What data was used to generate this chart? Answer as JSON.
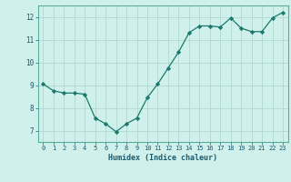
{
  "x": [
    0,
    1,
    2,
    3,
    4,
    5,
    6,
    7,
    8,
    9,
    10,
    11,
    12,
    13,
    14,
    15,
    16,
    17,
    18,
    19,
    20,
    21,
    22,
    23
  ],
  "y": [
    9.05,
    8.75,
    8.65,
    8.65,
    8.6,
    7.55,
    7.3,
    6.95,
    7.3,
    7.55,
    8.45,
    9.05,
    9.75,
    10.45,
    11.3,
    11.6,
    11.6,
    11.55,
    11.95,
    11.5,
    11.35,
    11.35,
    11.95,
    12.2
  ],
  "xlabel": "Humidex (Indice chaleur)",
  "xlim": [
    -0.5,
    23.5
  ],
  "ylim": [
    6.5,
    12.5
  ],
  "yticks": [
    7,
    8,
    9,
    10,
    11,
    12
  ],
  "xticks": [
    0,
    1,
    2,
    3,
    4,
    5,
    6,
    7,
    8,
    9,
    10,
    11,
    12,
    13,
    14,
    15,
    16,
    17,
    18,
    19,
    20,
    21,
    22,
    23
  ],
  "line_color": "#1a7a6e",
  "marker_color": "#1a7a6e",
  "bg_color": "#cff0eb",
  "grid_color": "#b0d8d2",
  "tick_label_color": "#1a5a6e",
  "xlabel_color": "#1a5a6e",
  "axes_color": "#5aada0"
}
